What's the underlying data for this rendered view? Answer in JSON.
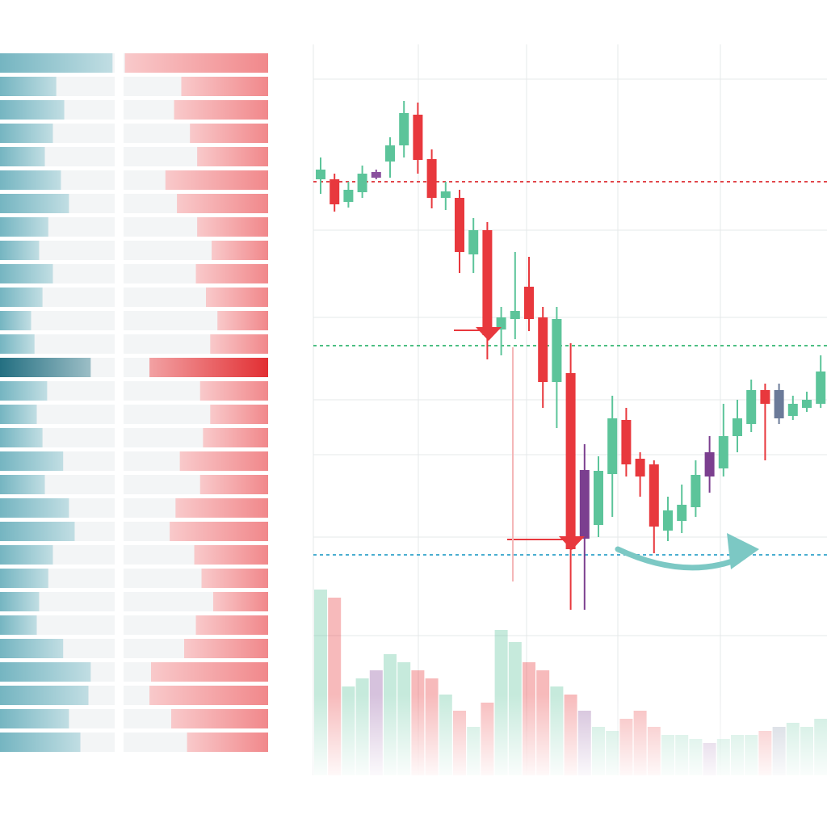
{
  "chart_data": [
    {
      "type": "orderbook",
      "xlim": [
        0,
        100
      ],
      "series": [
        {
          "side": "bid",
          "color": "#3f9aab",
          "highlight": {
            "index": 13,
            "color": "#17677a"
          },
          "values": [
            98,
            49,
            56,
            46,
            39,
            53,
            60,
            42,
            34,
            46,
            37,
            27,
            30,
            79,
            41,
            32,
            37,
            55,
            39,
            60,
            65,
            46,
            42,
            34,
            32,
            55,
            79,
            77,
            60,
            70
          ]
        },
        {
          "side": "ask",
          "color": "#ef5a5e",
          "highlight": {
            "index": 13,
            "color": "#e02428"
          },
          "values": [
            99,
            60,
            65,
            54,
            49,
            71,
            63,
            49,
            39,
            50,
            43,
            35,
            40,
            82,
            47,
            40,
            45,
            61,
            47,
            64,
            68,
            51,
            46,
            38,
            50,
            58,
            81,
            82,
            67,
            56
          ]
        }
      ]
    },
    {
      "type": "candlestick",
      "ylim": [
        4,
        95
      ],
      "grid": true,
      "open": [
        77.8,
        77.8,
        75.0,
        76.2,
        78.0,
        80.0,
        82.0,
        85.8,
        80.3,
        75.5,
        75.5,
        68.5,
        71.5,
        59.2,
        60.5,
        64.5,
        60.7,
        52.7,
        53.8,
        33.3,
        35.0,
        41.3,
        48.0,
        43.2,
        42.5,
        34.3,
        35.5,
        37.2,
        41.0,
        42.0,
        46.0,
        47.5,
        51.7,
        48.2,
        48.5,
        49.5,
        50.0
      ],
      "high": [
        80.5,
        78.5,
        77.5,
        79.5,
        79.0,
        83.0,
        87.5,
        87.3,
        81.5,
        77.5,
        76.5,
        73.0,
        72.5,
        62.0,
        68.8,
        68.2,
        62.0,
        62.0,
        57.5,
        45.0,
        43.5,
        51.0,
        49.5,
        44.0,
        43.0,
        38.5,
        40.0,
        43.0,
        46.0,
        50.0,
        50.5,
        53.0,
        52.5,
        52.5,
        51.0,
        51.5,
        56.0
      ],
      "low": [
        76.0,
        73.8,
        74.3,
        75.5,
        77.8,
        78.0,
        80.5,
        78.5,
        74.2,
        74.0,
        66.2,
        66.2,
        55.5,
        56.0,
        58.0,
        59.0,
        49.5,
        47.0,
        24.5,
        24.5,
        33.5,
        36.0,
        41.0,
        38.5,
        31.5,
        33.0,
        34.0,
        36.0,
        39.0,
        41.0,
        44.0,
        46.5,
        43.0,
        47.5,
        48.0,
        49.0,
        49.5
      ],
      "close": [
        79.0,
        74.7,
        76.5,
        78.5,
        78.7,
        82.0,
        86.0,
        80.2,
        75.5,
        76.3,
        68.8,
        71.5,
        58.5,
        60.7,
        61.5,
        60.5,
        52.7,
        60.5,
        32.0,
        41.8,
        41.7,
        48.2,
        42.5,
        41.0,
        34.8,
        36.8,
        37.5,
        41.2,
        44.0,
        46.0,
        48.2,
        51.7,
        50.0,
        51.7,
        50.0,
        50.5,
        54.0
      ],
      "colors": [
        "#5cc49a",
        "#e8383d",
        "#5cc49a",
        "#5cc49a",
        "#8a4f9e",
        "#5cc49a",
        "#5cc49a",
        "#e8383d",
        "#e8383d",
        "#5cc49a",
        "#e8383d",
        "#5cc49a",
        "#e8383d",
        "#5cc49a",
        "#5cc49a",
        "#e8383d",
        "#e8383d",
        "#5cc49a",
        "#e8383d",
        "#7b3f8f",
        "#5cc49a",
        "#5cc49a",
        "#e8383d",
        "#e8383d",
        "#e8383d",
        "#5cc49a",
        "#5cc49a",
        "#5cc49a",
        "#7b3f8f",
        "#5cc49a",
        "#5cc49a",
        "#5cc49a",
        "#e8383d",
        "#6b7a99",
        "#5cc49a",
        "#5cc49a",
        "#5cc49a"
      ],
      "levels": [
        {
          "value": 77.5,
          "color": "#e2474b"
        },
        {
          "value": 57.2,
          "color": "#4cbf82"
        },
        {
          "value": 31.3,
          "color": "#4aaed0"
        }
      ]
    },
    {
      "type": "volume",
      "ylim": [
        0,
        300
      ],
      "values": [
        230,
        220,
        110,
        120,
        130,
        150,
        140,
        130,
        120,
        100,
        80,
        60,
        90,
        180,
        165,
        140,
        130,
        110,
        100,
        80,
        60,
        55,
        70,
        80,
        60,
        50,
        50,
        45,
        40,
        45,
        50,
        50,
        55,
        60,
        65,
        60,
        70
      ]
    }
  ]
}
